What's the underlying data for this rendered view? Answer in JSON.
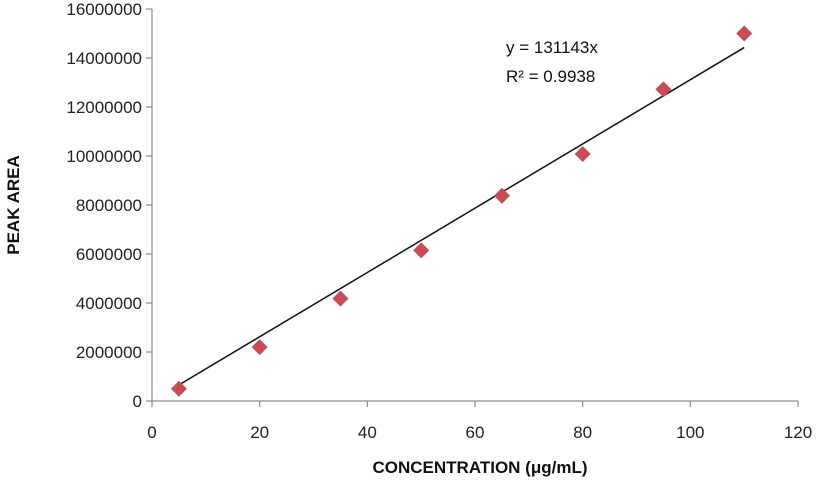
{
  "chart_data": {
    "type": "scatter",
    "title": "",
    "xlabel": "CONCENTRATION (μg/mL)",
    "ylabel": "PEAK AREA",
    "xlim": [
      0,
      120
    ],
    "ylim": [
      0,
      16000000
    ],
    "xticks": [
      0,
      20,
      40,
      60,
      80,
      100,
      120
    ],
    "yticks": [
      0,
      2000000,
      4000000,
      6000000,
      8000000,
      10000000,
      12000000,
      14000000,
      16000000
    ],
    "x_tick_labels": [
      "0",
      "20",
      "40",
      "60",
      "80",
      "100",
      "120"
    ],
    "y_tick_labels": [
      "0",
      "2000000",
      "4000000",
      "6000000",
      "8000000",
      "10000000",
      "12000000",
      "14000000",
      "16000000"
    ],
    "grid": false,
    "legend": "none",
    "series": [
      {
        "x": [
          5,
          20,
          35,
          50,
          65,
          80,
          95,
          110
        ],
        "y": [
          500000,
          2200000,
          4180000,
          6150000,
          8380000,
          10080000,
          12720000,
          15000000
        ],
        "marker": "diamond",
        "color": "#c84b55"
      }
    ],
    "trendline": {
      "type": "linear",
      "slope": 131143,
      "intercept": 0,
      "x_range": [
        5,
        110
      ],
      "color": "#111111"
    },
    "annotations": {
      "equation": "y = 131143x",
      "r_squared": "R² = 0.9938"
    }
  }
}
